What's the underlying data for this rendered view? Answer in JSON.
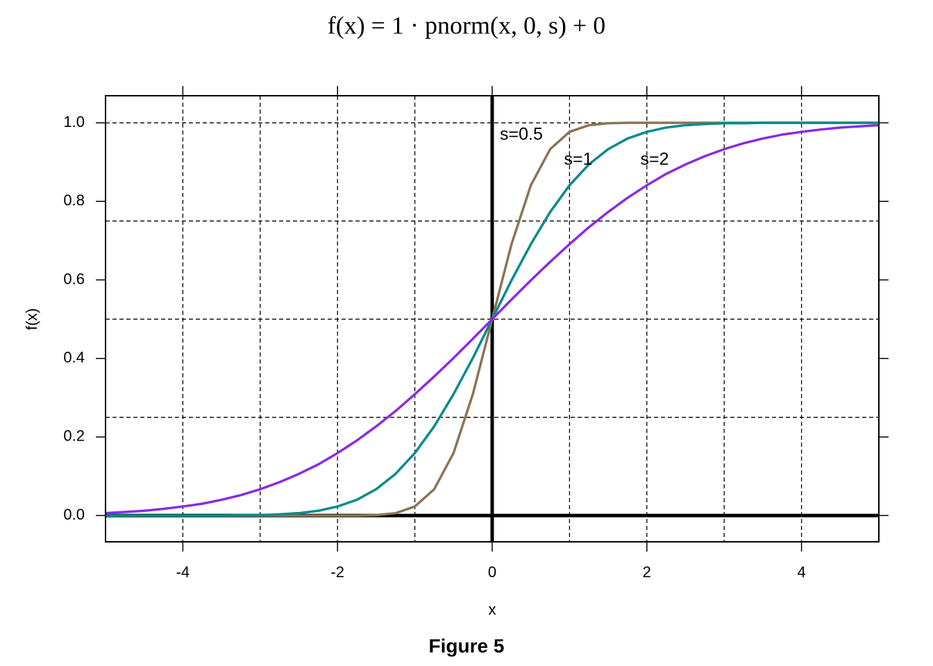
{
  "chart_data": {
    "type": "line",
    "title": "f(x) = 1 · pnorm(x, 0, s) + 0",
    "caption": "Figure 5",
    "x_label": "x",
    "y_label": "f(x)",
    "x": [
      -5,
      -4.75,
      -4.5,
      -4.25,
      -4,
      -3.75,
      -3.5,
      -3.25,
      -3,
      -2.75,
      -2.5,
      -2.25,
      -2,
      -1.75,
      -1.5,
      -1.25,
      -1,
      -0.75,
      -0.5,
      -0.25,
      0,
      0.25,
      0.5,
      0.75,
      1,
      1.25,
      1.5,
      1.75,
      2,
      2.25,
      2.5,
      2.75,
      3,
      3.25,
      3.5,
      3.75,
      4,
      4.25,
      4.5,
      4.75,
      5
    ],
    "series": [
      {
        "name": "s=0.5",
        "color": "#8b7355",
        "values": [
          0,
          0,
          0,
          0,
          0,
          0,
          0,
          0,
          0,
          0,
          0,
          0,
          0,
          0,
          0.001,
          0.006,
          0.023,
          0.067,
          0.159,
          0.309,
          0.5,
          0.691,
          0.841,
          0.933,
          0.977,
          0.994,
          0.999,
          1,
          1,
          1,
          1,
          1,
          1,
          1,
          1,
          1,
          1,
          1,
          1,
          1,
          1
        ]
      },
      {
        "name": "s=1",
        "color": "#008b8b",
        "values": [
          0,
          0,
          0,
          0,
          0,
          0,
          0,
          0.001,
          0.001,
          0.003,
          0.006,
          0.012,
          0.023,
          0.04,
          0.067,
          0.106,
          0.159,
          0.227,
          0.309,
          0.401,
          0.5,
          0.599,
          0.691,
          0.773,
          0.841,
          0.894,
          0.933,
          0.96,
          0.977,
          0.988,
          0.994,
          0.997,
          0.999,
          0.999,
          1,
          1,
          1,
          1,
          1,
          1,
          1
        ]
      },
      {
        "name": "s=2",
        "color": "#8a2be2",
        "values": [
          0.006,
          0.009,
          0.012,
          0.017,
          0.023,
          0.03,
          0.04,
          0.052,
          0.067,
          0.085,
          0.106,
          0.13,
          0.159,
          0.191,
          0.227,
          0.266,
          0.309,
          0.354,
          0.401,
          0.45,
          0.5,
          0.55,
          0.599,
          0.646,
          0.691,
          0.734,
          0.773,
          0.809,
          0.841,
          0.87,
          0.894,
          0.915,
          0.933,
          0.948,
          0.96,
          0.97,
          0.977,
          0.983,
          0.988,
          0.991,
          0.994
        ]
      }
    ],
    "xlim": [
      -5,
      5
    ],
    "ylim": [
      -0.067,
      1.069
    ],
    "xticks": [
      -4,
      -2,
      0,
      2,
      4
    ],
    "yticks": [
      {
        "value": 0,
        "label": "0.0"
      },
      {
        "value": 0.2,
        "label": "0.2"
      },
      {
        "value": 0.4,
        "label": "0.4"
      },
      {
        "value": 0.6,
        "label": "0.6"
      },
      {
        "value": 0.8,
        "label": "0.8"
      },
      {
        "value": 1,
        "label": "1.0"
      }
    ],
    "xgrid": [
      -4,
      -3,
      -2,
      -1,
      1,
      2,
      3,
      4
    ],
    "ygrid": [
      0.25,
      0.5,
      0.75,
      1
    ],
    "reference_lines": {
      "x": 0,
      "y": 0
    }
  }
}
